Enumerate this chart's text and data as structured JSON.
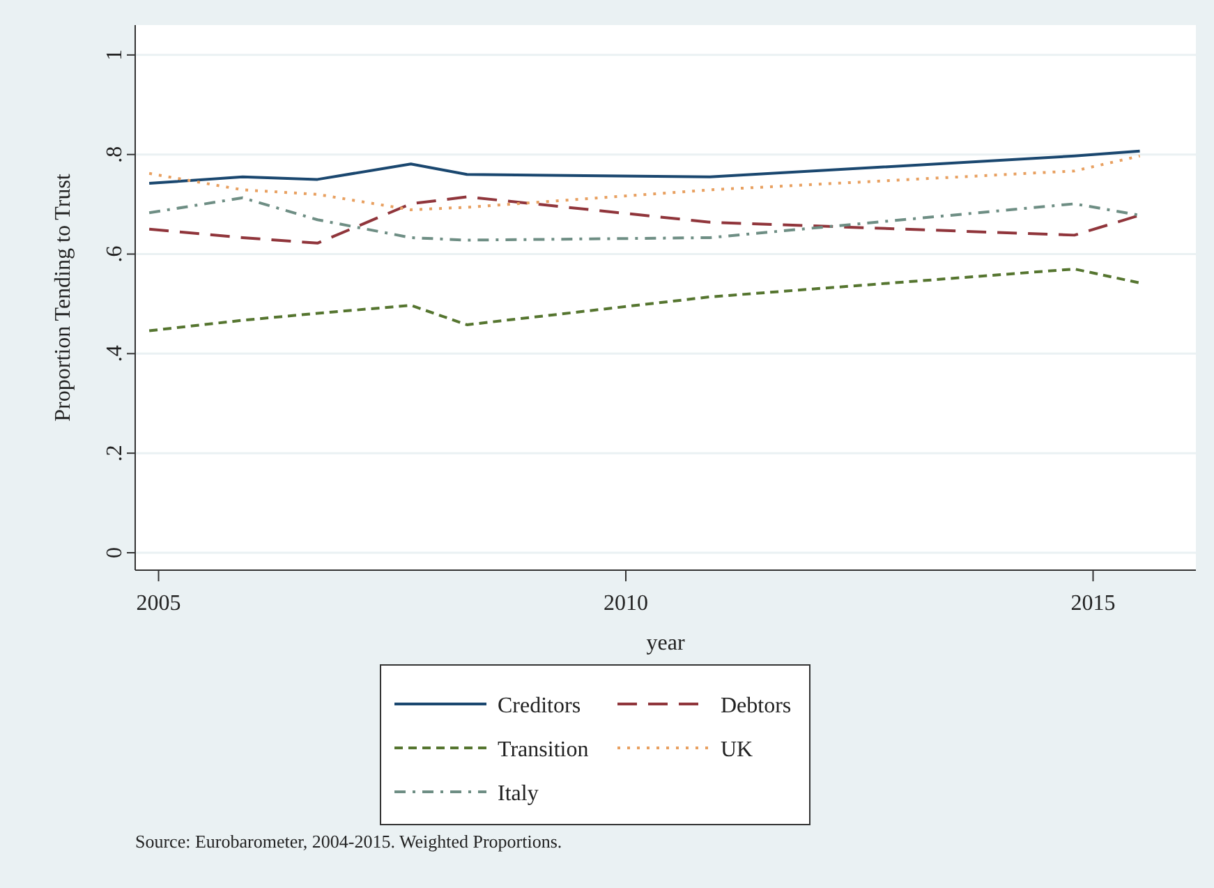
{
  "chart_data": {
    "type": "line",
    "xlabel": "year",
    "ylabel": "Proportion Tending to Trust",
    "x": [
      2004.9,
      2005.9,
      2006.7,
      2007.7,
      2008.3,
      2010.9,
      2014.8,
      2015.5
    ],
    "xlim": [
      2004.75,
      2016.1
    ],
    "xticks": [
      2005,
      2010,
      2015
    ],
    "ylim": [
      -0.035,
      1.06
    ],
    "yticks": [
      {
        "value": 0,
        "label": "0"
      },
      {
        "value": 0.2,
        "label": ".2"
      },
      {
        "value": 0.4,
        "label": ".4"
      },
      {
        "value": 0.6,
        "label": ".6"
      },
      {
        "value": 0.8,
        "label": ".8"
      },
      {
        "value": 1,
        "label": "1"
      }
    ],
    "grid": "y",
    "legend": "bottom",
    "marker": "none",
    "series": [
      {
        "name": "Creditors",
        "color": "#1a476f",
        "line_style": "solid",
        "values": [
          0.742,
          0.755,
          0.75,
          0.781,
          0.76,
          0.755,
          0.797,
          0.807
        ]
      },
      {
        "name": "Debtors",
        "color": "#90353b",
        "line_style": "dashed",
        "values": [
          0.65,
          0.633,
          0.622,
          0.701,
          0.715,
          0.664,
          0.638,
          0.678
        ]
      },
      {
        "name": "Transition",
        "color": "#55752f",
        "line_style": "dashed",
        "values": [
          0.446,
          0.467,
          0.481,
          0.497,
          0.458,
          0.514,
          0.57,
          0.542
        ]
      },
      {
        "name": "UK",
        "color": "#e8a060",
        "line_style": "dotted",
        "values": [
          0.762,
          0.729,
          0.72,
          0.689,
          0.694,
          0.729,
          0.767,
          0.797
        ]
      },
      {
        "name": "Italy",
        "color": "#6e8e84",
        "line_style": "dashdot",
        "values": [
          0.683,
          0.713,
          0.669,
          0.633,
          0.628,
          0.633,
          0.701,
          0.678
        ]
      }
    ],
    "annotations": [
      "Source: Eurobarometer, 2004-2015. Weighted Proportions."
    ]
  }
}
